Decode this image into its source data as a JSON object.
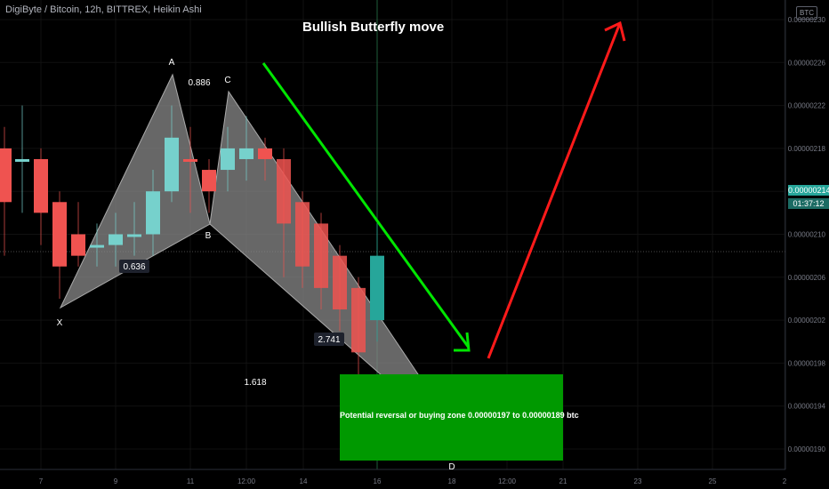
{
  "header": {
    "symbol_line": "DigiByte / Bitcoin, 12h, BITTREX, Heikin Ashi"
  },
  "title": "Bullish Butterfly move",
  "currency_badge": "BTC",
  "last_price_label": "0.00000214",
  "countdown_label": "01:37:12",
  "zone": {
    "label": "Potential reversal or buying zone 0.00000197 to 0.00000189 btc",
    "color": "#009900"
  },
  "colors": {
    "up": "#76d1cc",
    "down": "#ef5350",
    "pattern_fill": "#8a8a8a",
    "green_arrow": "#00e600",
    "red_arrow": "#ff1a1a",
    "up_bar": "#26a69a"
  },
  "chart_data": {
    "type": "candlestick",
    "title": "Bullish Butterfly move",
    "xlabel": "",
    "ylabel": "",
    "ylim": [
      1.87e-06,
      2.31e-06
    ],
    "x_ticks": [
      "7",
      "9",
      "11",
      "12:00",
      "14",
      "16",
      "18",
      "12:00",
      "21",
      "23",
      "25",
      "2"
    ],
    "y_ticks": [
      "0.00000230",
      "0.00000226",
      "0.00000222",
      "0.00000218",
      "0.00000214",
      "0.00000210",
      "0.00000206",
      "0.00000202",
      "0.00000198",
      "0.00000194",
      "0.00000190"
    ],
    "candles": [
      {
        "o": 2.18e-06,
        "c": 2.13e-06,
        "h": 2.2e-06,
        "l": 2.08e-06,
        "dir": "down"
      },
      {
        "o": 2.17e-06,
        "c": 2.17e-06,
        "h": 2.22e-06,
        "l": 2.12e-06,
        "dir": "up"
      },
      {
        "o": 2.17e-06,
        "c": 2.12e-06,
        "h": 2.18e-06,
        "l": 2.09e-06,
        "dir": "down"
      },
      {
        "o": 2.13e-06,
        "c": 2.07e-06,
        "h": 2.14e-06,
        "l": 2.04e-06,
        "dir": "down"
      },
      {
        "o": 2.1e-06,
        "c": 2.08e-06,
        "h": 2.13e-06,
        "l": 2.07e-06,
        "dir": "down"
      },
      {
        "o": 2.09e-06,
        "c": 2.09e-06,
        "h": 2.11e-06,
        "l": 2.07e-06,
        "dir": "up"
      },
      {
        "o": 2.09e-06,
        "c": 2.1e-06,
        "h": 2.12e-06,
        "l": 2.07e-06,
        "dir": "up"
      },
      {
        "o": 2.1e-06,
        "c": 2.1e-06,
        "h": 2.13e-06,
        "l": 2.08e-06,
        "dir": "up"
      },
      {
        "o": 2.1e-06,
        "c": 2.14e-06,
        "h": 2.16e-06,
        "l": 2.08e-06,
        "dir": "up"
      },
      {
        "o": 2.14e-06,
        "c": 2.19e-06,
        "h": 2.22e-06,
        "l": 2.13e-06,
        "dir": "up"
      },
      {
        "o": 2.17e-06,
        "c": 2.17e-06,
        "h": 2.2e-06,
        "l": 2.12e-06,
        "dir": "down"
      },
      {
        "o": 2.16e-06,
        "c": 2.14e-06,
        "h": 2.17e-06,
        "l": 2.12e-06,
        "dir": "down"
      },
      {
        "o": 2.16e-06,
        "c": 2.18e-06,
        "h": 2.2e-06,
        "l": 2.14e-06,
        "dir": "up"
      },
      {
        "o": 2.17e-06,
        "c": 2.18e-06,
        "h": 2.21e-06,
        "l": 2.15e-06,
        "dir": "up"
      },
      {
        "o": 2.18e-06,
        "c": 2.17e-06,
        "h": 2.19e-06,
        "l": 2.15e-06,
        "dir": "down"
      },
      {
        "o": 2.17e-06,
        "c": 2.11e-06,
        "h": 2.18e-06,
        "l": 2.06e-06,
        "dir": "down"
      },
      {
        "o": 2.13e-06,
        "c": 2.07e-06,
        "h": 2.14e-06,
        "l": 2.05e-06,
        "dir": "down"
      },
      {
        "o": 2.11e-06,
        "c": 2.05e-06,
        "h": 2.12e-06,
        "l": 2.03e-06,
        "dir": "down"
      },
      {
        "o": 2.08e-06,
        "c": 2.03e-06,
        "h": 2.09e-06,
        "l": 2.01e-06,
        "dir": "down"
      },
      {
        "o": 2.05e-06,
        "c": 1.99e-06,
        "h": 2.06e-06,
        "l": 1.95e-06,
        "dir": "down"
      },
      {
        "o": 2.02e-06,
        "c": 2.08e-06,
        "h": 2.11e-06,
        "l": 2e-06,
        "dir": "up"
      }
    ],
    "pattern_points": [
      {
        "label": "X"
      },
      {
        "label": "A"
      },
      {
        "label": "B"
      },
      {
        "label": "C"
      },
      {
        "label": "D"
      }
    ],
    "ratios": [
      "0.886",
      "0.636",
      "2.741",
      "1.618"
    ]
  }
}
